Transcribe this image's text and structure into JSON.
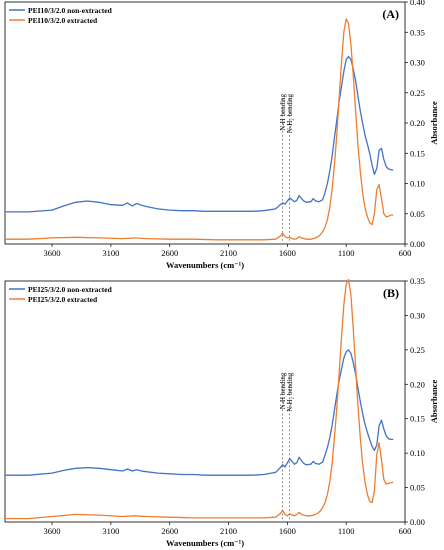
{
  "chart_data": [
    {
      "type": "line",
      "panel_label": "(A)",
      "xlabel": "Wavenumbers (cm⁻¹)",
      "ylabel": "Absorbance",
      "xlim": [
        4000,
        600
      ],
      "ylim": [
        0,
        0.4
      ],
      "x_ticks": [
        3600,
        3100,
        2600,
        2100,
        1600,
        1100,
        600
      ],
      "y_ticks": [
        0.0,
        0.05,
        0.1,
        0.15,
        0.2,
        0.25,
        0.3,
        0.35,
        0.4
      ],
      "legend_position": "top-left",
      "annotations": [
        {
          "text": "N-H bending",
          "x": 1640
        },
        {
          "text": "N-H₂ bending",
          "x": 1580
        }
      ],
      "series": [
        {
          "name": "PEI10/3/2.0 non-extracted",
          "color": "#4472C4",
          "x": [
            4000,
            3800,
            3600,
            3500,
            3400,
            3300,
            3200,
            3100,
            3000,
            2960,
            2920,
            2880,
            2840,
            2800,
            2700,
            2600,
            2500,
            2400,
            2300,
            2200,
            2100,
            2000,
            1900,
            1800,
            1700,
            1660,
            1640,
            1620,
            1600,
            1580,
            1560,
            1540,
            1520,
            1500,
            1480,
            1460,
            1440,
            1400,
            1380,
            1360,
            1330,
            1300,
            1280,
            1260,
            1240,
            1220,
            1200,
            1180,
            1160,
            1140,
            1120,
            1100,
            1080,
            1060,
            1040,
            1020,
            1000,
            980,
            960,
            940,
            920,
            900,
            880,
            860,
            840,
            820,
            800,
            780,
            760,
            740,
            720,
            700
          ],
          "y": [
            0.053,
            0.053,
            0.056,
            0.063,
            0.069,
            0.071,
            0.069,
            0.065,
            0.064,
            0.068,
            0.063,
            0.067,
            0.064,
            0.062,
            0.058,
            0.056,
            0.055,
            0.055,
            0.054,
            0.054,
            0.054,
            0.054,
            0.054,
            0.055,
            0.058,
            0.065,
            0.068,
            0.066,
            0.071,
            0.076,
            0.073,
            0.07,
            0.072,
            0.08,
            0.075,
            0.071,
            0.069,
            0.07,
            0.075,
            0.071,
            0.07,
            0.073,
            0.085,
            0.1,
            0.12,
            0.145,
            0.175,
            0.205,
            0.235,
            0.26,
            0.285,
            0.305,
            0.31,
            0.305,
            0.29,
            0.27,
            0.245,
            0.22,
            0.2,
            0.18,
            0.165,
            0.15,
            0.13,
            0.115,
            0.125,
            0.155,
            0.158,
            0.14,
            0.128,
            0.124,
            0.123,
            0.122
          ]
        },
        {
          "name": "PEI10/3/2.0 extracted",
          "color": "#ED7D31",
          "x": [
            4000,
            3800,
            3600,
            3400,
            3200,
            3000,
            2900,
            2800,
            2600,
            2400,
            2200,
            2000,
            1800,
            1700,
            1660,
            1640,
            1620,
            1600,
            1580,
            1560,
            1540,
            1520,
            1500,
            1480,
            1460,
            1440,
            1420,
            1400,
            1380,
            1360,
            1340,
            1320,
            1300,
            1280,
            1260,
            1240,
            1220,
            1200,
            1180,
            1160,
            1140,
            1120,
            1100,
            1080,
            1060,
            1040,
            1020,
            1000,
            980,
            960,
            940,
            920,
            900,
            880,
            860,
            840,
            820,
            800,
            780,
            760,
            740,
            720,
            700
          ],
          "y": [
            0.008,
            0.008,
            0.01,
            0.011,
            0.01,
            0.009,
            0.01,
            0.009,
            0.008,
            0.008,
            0.007,
            0.007,
            0.007,
            0.008,
            0.013,
            0.018,
            0.012,
            0.01,
            0.011,
            0.009,
            0.008,
            0.009,
            0.012,
            0.01,
            0.009,
            0.008,
            0.008,
            0.008,
            0.009,
            0.01,
            0.012,
            0.015,
            0.02,
            0.028,
            0.04,
            0.06,
            0.09,
            0.13,
            0.18,
            0.24,
            0.3,
            0.35,
            0.372,
            0.365,
            0.33,
            0.28,
            0.22,
            0.165,
            0.12,
            0.085,
            0.06,
            0.045,
            0.035,
            0.032,
            0.05,
            0.09,
            0.098,
            0.075,
            0.05,
            0.045,
            0.046,
            0.048,
            0.048
          ]
        }
      ]
    },
    {
      "type": "line",
      "panel_label": "(B)",
      "xlabel": "Wavenumbers (cm⁻¹)",
      "ylabel": "Absorbance",
      "xlim": [
        4000,
        600
      ],
      "ylim": [
        0,
        0.35
      ],
      "x_ticks": [
        3600,
        3100,
        2600,
        2100,
        1600,
        1100,
        600
      ],
      "y_ticks": [
        0.0,
        0.05,
        0.1,
        0.15,
        0.2,
        0.25,
        0.3,
        0.35
      ],
      "legend_position": "top-left",
      "annotations": [
        {
          "text": "N-H bending",
          "x": 1640
        },
        {
          "text": "N-H₂ bending",
          "x": 1580
        }
      ],
      "series": [
        {
          "name": "PEI25/3/2.0 non-extracted",
          "color": "#4472C4",
          "x": [
            4000,
            3800,
            3600,
            3500,
            3400,
            3300,
            3200,
            3100,
            3000,
            2960,
            2920,
            2880,
            2840,
            2800,
            2700,
            2600,
            2500,
            2400,
            2300,
            2200,
            2100,
            2000,
            1900,
            1800,
            1700,
            1660,
            1640,
            1620,
            1600,
            1580,
            1560,
            1540,
            1520,
            1500,
            1480,
            1460,
            1440,
            1400,
            1380,
            1360,
            1330,
            1300,
            1280,
            1260,
            1240,
            1220,
            1200,
            1180,
            1160,
            1140,
            1120,
            1100,
            1080,
            1060,
            1040,
            1020,
            1000,
            980,
            960,
            940,
            920,
            900,
            880,
            860,
            840,
            820,
            800,
            780,
            760,
            740,
            720,
            700
          ],
          "y": [
            0.068,
            0.068,
            0.071,
            0.075,
            0.078,
            0.079,
            0.078,
            0.076,
            0.074,
            0.077,
            0.074,
            0.076,
            0.074,
            0.073,
            0.071,
            0.07,
            0.069,
            0.069,
            0.068,
            0.068,
            0.068,
            0.068,
            0.068,
            0.069,
            0.072,
            0.079,
            0.083,
            0.08,
            0.086,
            0.092,
            0.088,
            0.084,
            0.086,
            0.094,
            0.089,
            0.085,
            0.083,
            0.084,
            0.088,
            0.085,
            0.084,
            0.087,
            0.097,
            0.108,
            0.122,
            0.14,
            0.162,
            0.185,
            0.205,
            0.222,
            0.238,
            0.247,
            0.25,
            0.245,
            0.232,
            0.215,
            0.195,
            0.175,
            0.158,
            0.142,
            0.13,
            0.12,
            0.11,
            0.104,
            0.112,
            0.14,
            0.148,
            0.135,
            0.125,
            0.121,
            0.12,
            0.12
          ]
        },
        {
          "name": "PEI25/3/2.0 extracted",
          "color": "#ED7D31",
          "x": [
            4000,
            3800,
            3600,
            3400,
            3200,
            3000,
            2900,
            2800,
            2600,
            2400,
            2200,
            2000,
            1800,
            1700,
            1660,
            1640,
            1620,
            1600,
            1580,
            1560,
            1540,
            1520,
            1500,
            1480,
            1460,
            1440,
            1420,
            1400,
            1380,
            1360,
            1340,
            1320,
            1300,
            1280,
            1260,
            1240,
            1220,
            1200,
            1180,
            1160,
            1140,
            1120,
            1100,
            1080,
            1060,
            1040,
            1020,
            1000,
            980,
            960,
            940,
            920,
            900,
            880,
            860,
            840,
            820,
            800,
            780,
            760,
            740,
            720,
            700
          ],
          "y": [
            0.005,
            0.005,
            0.008,
            0.011,
            0.01,
            0.008,
            0.009,
            0.008,
            0.007,
            0.006,
            0.006,
            0.006,
            0.006,
            0.007,
            0.012,
            0.017,
            0.011,
            0.009,
            0.012,
            0.01,
            0.009,
            0.011,
            0.014,
            0.011,
            0.01,
            0.009,
            0.009,
            0.009,
            0.01,
            0.011,
            0.013,
            0.016,
            0.021,
            0.028,
            0.04,
            0.058,
            0.085,
            0.122,
            0.165,
            0.215,
            0.268,
            0.315,
            0.345,
            0.352,
            0.33,
            0.282,
            0.225,
            0.17,
            0.122,
            0.085,
            0.058,
            0.04,
            0.03,
            0.028,
            0.045,
            0.098,
            0.115,
            0.09,
            0.062,
            0.055,
            0.056,
            0.057,
            0.058
          ]
        }
      ]
    }
  ]
}
